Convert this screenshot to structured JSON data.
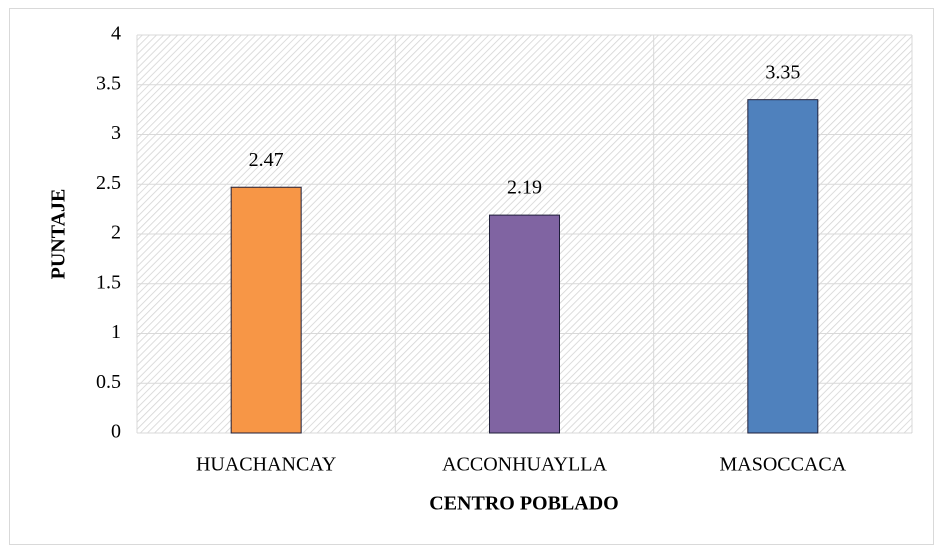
{
  "chart_data": {
    "type": "bar",
    "categories": [
      "HUACHANCAY",
      "ACCONHUAYLLA",
      "MASOCCACA"
    ],
    "values": [
      2.47,
      2.19,
      3.35
    ],
    "colors": [
      "#f79646",
      "#8064a2",
      "#4f81bd"
    ],
    "x_label": "CENTRO POBLADO",
    "y_label": "PUNTAJE",
    "ylim": [
      0,
      4
    ],
    "yticks": [
      0,
      0.5,
      1,
      1.5,
      2,
      2.5,
      3,
      3.5,
      4
    ],
    "grid": true
  }
}
